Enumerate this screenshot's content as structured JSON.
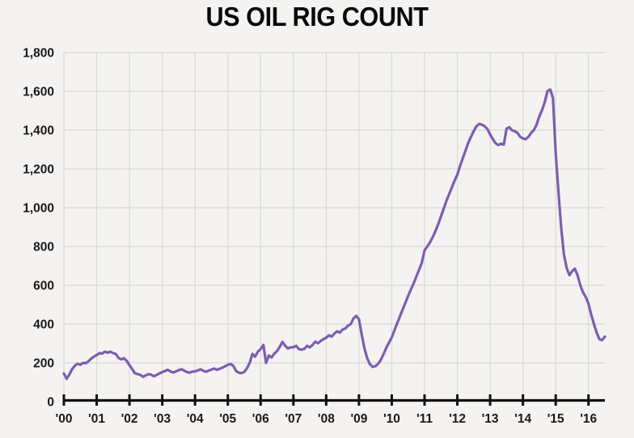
{
  "title": "US OIL RIG COUNT",
  "colors": {
    "background": "#F4F3F1",
    "line": "#7C5EAF",
    "grid": "#D9D8D5",
    "axis": "#111111",
    "tick_text": "#1A1A1A",
    "title_text": "#0A0A0A"
  },
  "chart_data": {
    "type": "line",
    "title": "US OIL RIG COUNT",
    "xlabel": "",
    "ylabel": "",
    "grid": true,
    "legend": "none",
    "xlim": [
      2000,
      2016.5
    ],
    "ylim": [
      0,
      1800
    ],
    "x_tick_years": [
      2000,
      2001,
      2002,
      2003,
      2004,
      2005,
      2006,
      2007,
      2008,
      2009,
      2010,
      2011,
      2012,
      2013,
      2014,
      2015,
      2016
    ],
    "x_tick_labels": [
      "'00",
      "'01",
      "'02",
      "'03",
      "'04",
      "'05",
      "'06",
      "'07",
      "'08",
      "'09",
      "'10",
      "'11",
      "'12",
      "'13",
      "'14",
      "'15",
      "'16"
    ],
    "y_ticks": [
      0,
      200,
      400,
      600,
      800,
      1000,
      1200,
      1400,
      1600,
      1800
    ],
    "y_tick_labels": [
      "0",
      "200",
      "400",
      "600",
      "800",
      "1,000",
      "1,200",
      "1,400",
      "1,600",
      "1,800"
    ],
    "series": [
      {
        "name": "US oil rig count",
        "x_start_year": 2000.0,
        "x_step_years": 0.0833333,
        "values": [
          145,
          118,
          140,
          167,
          185,
          195,
          190,
          200,
          198,
          208,
          222,
          232,
          240,
          250,
          248,
          258,
          252,
          258,
          250,
          246,
          225,
          218,
          224,
          210,
          188,
          168,
          146,
          142,
          138,
          128,
          136,
          142,
          138,
          131,
          138,
          146,
          152,
          158,
          164,
          156,
          150,
          156,
          162,
          167,
          160,
          153,
          149,
          155,
          156,
          161,
          167,
          159,
          154,
          160,
          165,
          171,
          164,
          169,
          175,
          182,
          190,
          194,
          185,
          158,
          149,
          147,
          153,
          172,
          200,
          246,
          232,
          258,
          271,
          292,
          200,
          238,
          228,
          248,
          260,
          282,
          308,
          288,
          274,
          280,
          280,
          288,
          271,
          268,
          272,
          288,
          280,
          292,
          309,
          301,
          313,
          322,
          330,
          342,
          335,
          351,
          363,
          356,
          372,
          377,
          392,
          400,
          430,
          442,
          425,
          345,
          275,
          225,
          193,
          179,
          183,
          195,
          215,
          245,
          278,
          305,
          332,
          368,
          405,
          440,
          475,
          510,
          545,
          578,
          610,
          645,
          680,
          715,
          780,
          800,
          822,
          848,
          880,
          915,
          955,
          995,
          1035,
          1070,
          1105,
          1140,
          1170,
          1215,
          1255,
          1295,
          1335,
          1365,
          1395,
          1420,
          1432,
          1428,
          1420,
          1405,
          1378,
          1353,
          1332,
          1323,
          1330,
          1325,
          1407,
          1415,
          1399,
          1394,
          1386,
          1365,
          1357,
          1353,
          1365,
          1386,
          1400,
          1428,
          1470,
          1503,
          1545,
          1601,
          1609,
          1566,
          1280,
          1080,
          900,
          760,
          690,
          652,
          672,
          686,
          652,
          600,
          563,
          540,
          505,
          448,
          400,
          355,
          322,
          317,
          335
        ]
      }
    ]
  }
}
